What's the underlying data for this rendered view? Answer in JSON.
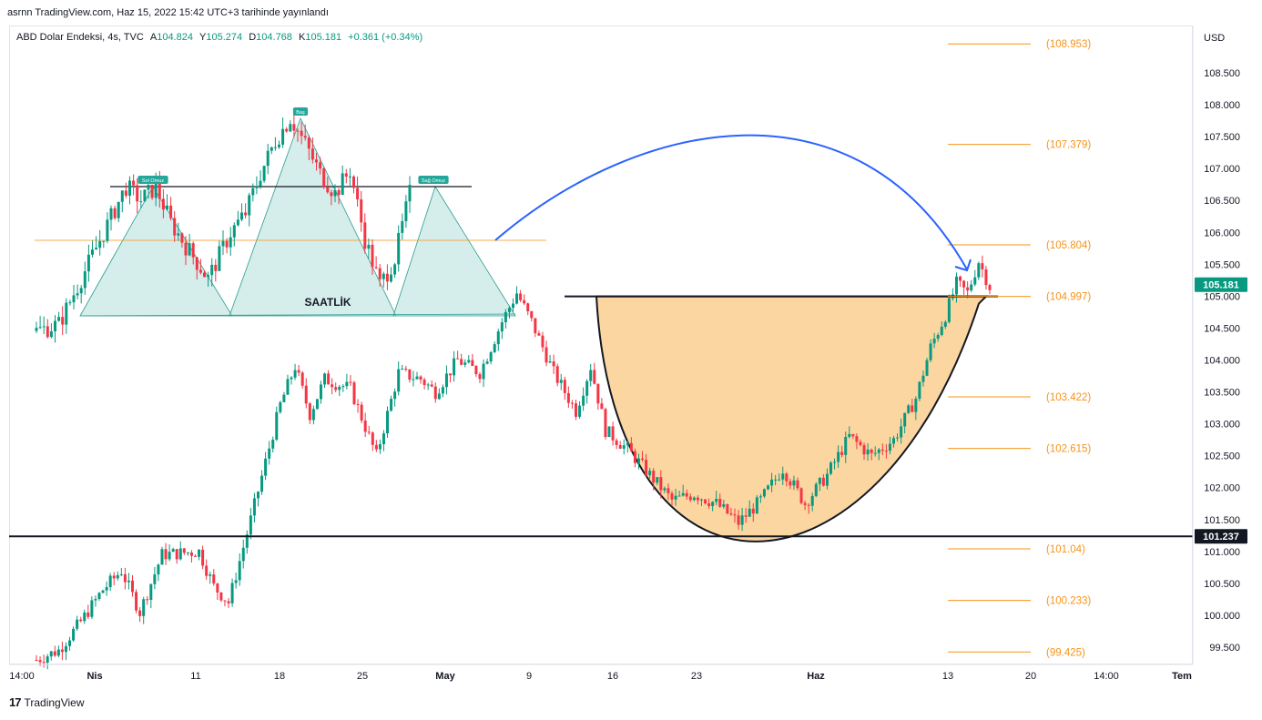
{
  "header": {
    "publish_line": "asrnn TradingView.com, Haz 15, 2022 15:42 UTC+3 tarihinde yayınlandı"
  },
  "legend": {
    "symbol": "ABD Dolar Endeksi, 4s, TVC",
    "open_label": "A",
    "open": "104.824",
    "high_label": "Y",
    "high": "105.274",
    "low_label": "D",
    "low": "104.768",
    "close_label": "K",
    "close": "105.181",
    "change": "+0.361 (+0.34%)"
  },
  "footer": {
    "brand": "TradingView",
    "logo_glyph": "17"
  },
  "colors": {
    "up": "#089981",
    "down": "#f23645",
    "fib": "#f7931a",
    "arc": "#2962ff",
    "cup_fill": "#fcd49b",
    "pattern_fill": "#b2dfdb"
  },
  "chart_data": {
    "type": "candlestick",
    "currency": "USD",
    "ylim": [
      99.2,
      109.3
    ],
    "y_ticks": [
      "108.500",
      "108.000",
      "107.500",
      "107.000",
      "106.500",
      "106.000",
      "105.500",
      "105.000",
      "104.500",
      "104.000",
      "103.500",
      "103.000",
      "102.500",
      "102.000",
      "101.500",
      "101.000",
      "100.500",
      "100.000",
      "99.500"
    ],
    "x_ticks": [
      "14:00",
      "Nis",
      "11",
      "18",
      "25",
      "May",
      "9",
      "16",
      "23",
      "Haz",
      "13",
      "20",
      "14:00",
      "Tem"
    ],
    "last_price": "105.181",
    "support_price": "101.237",
    "fib_levels": [
      {
        "label": "(108.953)",
        "value": 108.953
      },
      {
        "label": "(107.379)",
        "value": 107.379
      },
      {
        "label": "(105.804)",
        "value": 105.804
      },
      {
        "label": "(104.997)",
        "value": 104.997
      },
      {
        "label": "(103.422)",
        "value": 103.422
      },
      {
        "label": "(102.615)",
        "value": 102.615
      },
      {
        "label": "(101.04)",
        "value": 101.04
      },
      {
        "label": "(100.233)",
        "value": 100.233
      },
      {
        "label": "(99.425)",
        "value": 99.425
      }
    ],
    "waypoints": [
      [
        0,
        99.3
      ],
      [
        6,
        99.45
      ],
      [
        12,
        99.9
      ],
      [
        18,
        100.4
      ],
      [
        23,
        100.7
      ],
      [
        28,
        100.05
      ],
      [
        34,
        100.95
      ],
      [
        44,
        101.0
      ],
      [
        48,
        100.45
      ],
      [
        52,
        100.2
      ],
      [
        58,
        101.5
      ],
      [
        62,
        102.4
      ],
      [
        66,
        103.3
      ],
      [
        70,
        103.9
      ],
      [
        74,
        103.15
      ],
      [
        78,
        103.7
      ],
      [
        85,
        103.55
      ],
      [
        92,
        102.5
      ],
      [
        98,
        103.8
      ],
      [
        104,
        103.7
      ],
      [
        108,
        103.5
      ],
      [
        114,
        104.0
      ],
      [
        120,
        103.8
      ],
      [
        126,
        104.6
      ],
      [
        130,
        105.05
      ],
      [
        134,
        104.6
      ],
      [
        140,
        103.8
      ],
      [
        146,
        103.2
      ],
      [
        150,
        103.9
      ],
      [
        154,
        102.9
      ],
      [
        160,
        102.6
      ],
      [
        166,
        102.2
      ],
      [
        172,
        101.8
      ],
      [
        178,
        101.9
      ],
      [
        184,
        101.75
      ],
      [
        190,
        101.45
      ],
      [
        196,
        101.8
      ],
      [
        202,
        102.3
      ],
      [
        208,
        101.75
      ],
      [
        214,
        102.2
      ],
      [
        220,
        102.8
      ],
      [
        226,
        102.5
      ],
      [
        232,
        102.75
      ],
      [
        238,
        103.4
      ],
      [
        242,
        104.2
      ],
      [
        246,
        104.7
      ],
      [
        249,
        105.2
      ],
      [
        252,
        105.05
      ],
      [
        255,
        105.55
      ],
      [
        258,
        105.15
      ]
    ],
    "inset_pattern": {
      "title": "SAATLİK",
      "left_shoulder_label": "Sol Omuz",
      "head_label": "Baş",
      "right_shoulder_label": "Sağ Omuz",
      "waypoints": [
        [
          0,
          104.5
        ],
        [
          6,
          104.6
        ],
        [
          12,
          105.3
        ],
        [
          18,
          106.0
        ],
        [
          24,
          106.7
        ],
        [
          28,
          106.5
        ],
        [
          32,
          106.7
        ],
        [
          36,
          106.15
        ],
        [
          40,
          105.8
        ],
        [
          46,
          105.3
        ],
        [
          52,
          106.0
        ],
        [
          56,
          106.3
        ],
        [
          60,
          106.9
        ],
        [
          64,
          107.4
        ],
        [
          68,
          107.75
        ],
        [
          72,
          107.35
        ],
        [
          76,
          106.9
        ],
        [
          80,
          106.6
        ],
        [
          84,
          106.95
        ],
        [
          88,
          105.9
        ],
        [
          92,
          105.2
        ],
        [
          96,
          105.6
        ],
        [
          100,
          106.6
        ]
      ]
    }
  }
}
